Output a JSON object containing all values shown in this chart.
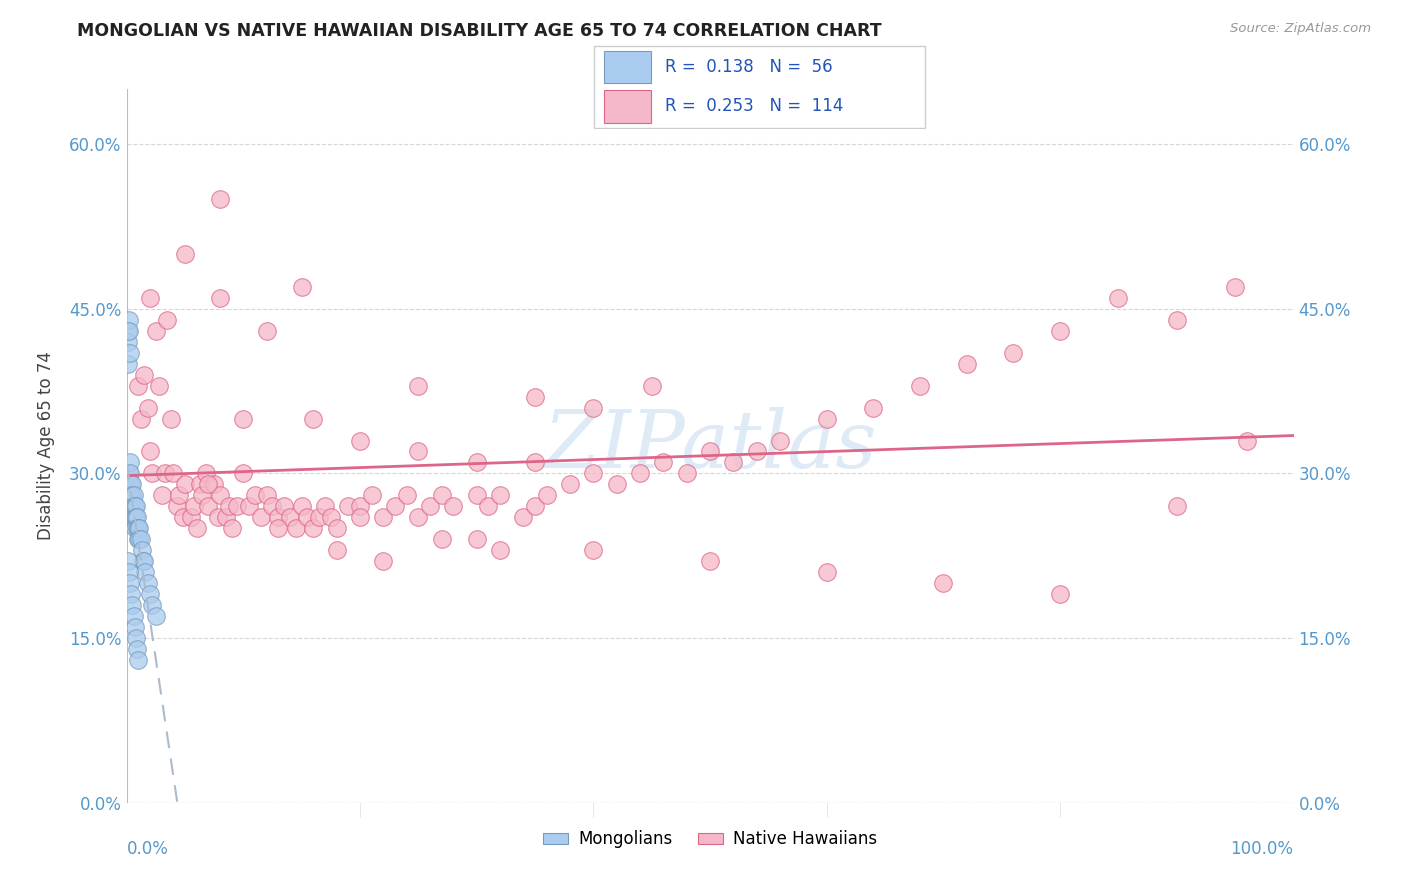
{
  "title": "MONGOLIAN VS NATIVE HAWAIIAN DISABILITY AGE 65 TO 74 CORRELATION CHART",
  "source": "Source: ZipAtlas.com",
  "ylabel": "Disability Age 65 to 74",
  "mongolian_R": 0.138,
  "mongolian_N": 56,
  "hawaiian_R": 0.253,
  "hawaiian_N": 114,
  "mongolian_color": "#aaccee",
  "hawaiian_color": "#f5b8c8",
  "mongolian_edge_color": "#7799bb",
  "hawaiian_edge_color": "#dd6688",
  "trend_mongolian_color": "#7799bb",
  "trend_hawaiian_color": "#dd6688",
  "watermark_color": "#c8dff0",
  "grid_color": "#cccccc",
  "tick_label_color": "#5599cc",
  "title_color": "#222222",
  "source_color": "#999999",
  "ylabel_color": "#444444",
  "xlim": [
    0.0,
    1.0
  ],
  "ylim": [
    0.0,
    0.65
  ],
  "ytick_vals": [
    0.0,
    0.15,
    0.3,
    0.45,
    0.6
  ],
  "mong_x": [
    0.001,
    0.001,
    0.001,
    0.001,
    0.001,
    0.002,
    0.002,
    0.002,
    0.002,
    0.002,
    0.003,
    0.003,
    0.003,
    0.003,
    0.003,
    0.004,
    0.004,
    0.004,
    0.004,
    0.005,
    0.005,
    0.005,
    0.005,
    0.006,
    0.006,
    0.006,
    0.007,
    0.007,
    0.007,
    0.008,
    0.008,
    0.009,
    0.009,
    0.01,
    0.01,
    0.011,
    0.011,
    0.012,
    0.013,
    0.014,
    0.015,
    0.016,
    0.018,
    0.02,
    0.022,
    0.025,
    0.001,
    0.002,
    0.003,
    0.004,
    0.005,
    0.006,
    0.007,
    0.008,
    0.009,
    0.01
  ],
  "mong_y": [
    0.43,
    0.42,
    0.4,
    0.28,
    0.27,
    0.44,
    0.43,
    0.3,
    0.29,
    0.27,
    0.41,
    0.31,
    0.3,
    0.28,
    0.27,
    0.29,
    0.28,
    0.27,
    0.26,
    0.29,
    0.28,
    0.27,
    0.26,
    0.28,
    0.27,
    0.26,
    0.27,
    0.26,
    0.25,
    0.27,
    0.26,
    0.26,
    0.25,
    0.25,
    0.24,
    0.25,
    0.24,
    0.24,
    0.23,
    0.22,
    0.22,
    0.21,
    0.2,
    0.19,
    0.18,
    0.17,
    0.22,
    0.21,
    0.2,
    0.19,
    0.18,
    0.17,
    0.16,
    0.15,
    0.14,
    0.13
  ],
  "haw_x": [
    0.01,
    0.012,
    0.015,
    0.018,
    0.02,
    0.022,
    0.025,
    0.028,
    0.03,
    0.033,
    0.035,
    0.038,
    0.04,
    0.043,
    0.045,
    0.048,
    0.05,
    0.055,
    0.058,
    0.06,
    0.063,
    0.065,
    0.068,
    0.07,
    0.075,
    0.078,
    0.08,
    0.085,
    0.088,
    0.09,
    0.095,
    0.1,
    0.105,
    0.11,
    0.115,
    0.12,
    0.125,
    0.13,
    0.135,
    0.14,
    0.145,
    0.15,
    0.155,
    0.16,
    0.165,
    0.17,
    0.175,
    0.18,
    0.19,
    0.2,
    0.21,
    0.22,
    0.23,
    0.24,
    0.25,
    0.26,
    0.27,
    0.28,
    0.3,
    0.31,
    0.32,
    0.34,
    0.35,
    0.36,
    0.38,
    0.4,
    0.42,
    0.44,
    0.46,
    0.48,
    0.5,
    0.52,
    0.54,
    0.56,
    0.6,
    0.64,
    0.68,
    0.72,
    0.76,
    0.8,
    0.85,
    0.9,
    0.95,
    0.02,
    0.05,
    0.08,
    0.12,
    0.16,
    0.2,
    0.25,
    0.3,
    0.35,
    0.4,
    0.08,
    0.15,
    0.25,
    0.35,
    0.45,
    0.1,
    0.2,
    0.3,
    0.4,
    0.5,
    0.6,
    0.7,
    0.8,
    0.9,
    0.96,
    0.07,
    0.13,
    0.18,
    0.22,
    0.27,
    0.32
  ],
  "haw_y": [
    0.38,
    0.35,
    0.39,
    0.36,
    0.32,
    0.3,
    0.43,
    0.38,
    0.28,
    0.3,
    0.44,
    0.35,
    0.3,
    0.27,
    0.28,
    0.26,
    0.29,
    0.26,
    0.27,
    0.25,
    0.29,
    0.28,
    0.3,
    0.27,
    0.29,
    0.26,
    0.28,
    0.26,
    0.27,
    0.25,
    0.27,
    0.3,
    0.27,
    0.28,
    0.26,
    0.28,
    0.27,
    0.26,
    0.27,
    0.26,
    0.25,
    0.27,
    0.26,
    0.25,
    0.26,
    0.27,
    0.26,
    0.25,
    0.27,
    0.27,
    0.28,
    0.26,
    0.27,
    0.28,
    0.26,
    0.27,
    0.28,
    0.27,
    0.28,
    0.27,
    0.28,
    0.26,
    0.27,
    0.28,
    0.29,
    0.3,
    0.29,
    0.3,
    0.31,
    0.3,
    0.32,
    0.31,
    0.32,
    0.33,
    0.35,
    0.36,
    0.38,
    0.4,
    0.41,
    0.43,
    0.46,
    0.44,
    0.47,
    0.46,
    0.5,
    0.46,
    0.43,
    0.35,
    0.33,
    0.32,
    0.31,
    0.37,
    0.36,
    0.55,
    0.47,
    0.38,
    0.31,
    0.38,
    0.35,
    0.26,
    0.24,
    0.23,
    0.22,
    0.21,
    0.2,
    0.19,
    0.27,
    0.33,
    0.29,
    0.25,
    0.23,
    0.22,
    0.24,
    0.23
  ]
}
